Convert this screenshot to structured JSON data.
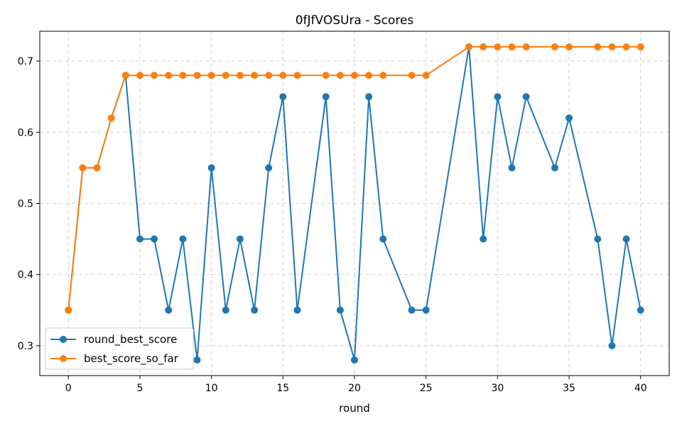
{
  "chart_data": {
    "type": "line",
    "title": "0fJfVOSUra - Scores",
    "xlabel": "round",
    "ylabel": "",
    "xlim": [
      -2,
      42
    ],
    "ylim": [
      0.258,
      0.742
    ],
    "xticks": [
      0,
      5,
      10,
      15,
      20,
      25,
      30,
      35,
      40
    ],
    "yticks": [
      0.3,
      0.4,
      0.5,
      0.6,
      0.7
    ],
    "xtick_labels": [
      "0",
      "5",
      "10",
      "15",
      "20",
      "25",
      "30",
      "35",
      "40"
    ],
    "ytick_labels": [
      "0.3",
      "0.4",
      "0.5",
      "0.6",
      "0.7"
    ],
    "grid": true,
    "legend_position": "lower-left",
    "x": [
      0,
      1,
      2,
      3,
      4,
      5,
      6,
      7,
      8,
      9,
      10,
      11,
      12,
      13,
      14,
      15,
      16,
      18,
      19,
      20,
      21,
      22,
      24,
      25,
      28,
      29,
      30,
      31,
      32,
      34,
      35,
      37,
      38,
      39,
      40
    ],
    "series": [
      {
        "name": "round_best_score",
        "color": "#1f77b4",
        "values": [
          0.35,
          0.55,
          0.55,
          0.62,
          0.68,
          0.45,
          0.45,
          0.35,
          0.45,
          0.28,
          0.55,
          0.35,
          0.45,
          0.35,
          0.55,
          0.65,
          0.35,
          0.65,
          0.35,
          0.28,
          0.65,
          0.45,
          0.35,
          0.35,
          0.72,
          0.45,
          0.65,
          0.55,
          0.65,
          0.55,
          0.62,
          0.45,
          0.3,
          0.45,
          0.35
        ]
      },
      {
        "name": "best_score_so_far",
        "color": "#ff7f0e",
        "values": [
          0.35,
          0.55,
          0.55,
          0.62,
          0.68,
          0.68,
          0.68,
          0.68,
          0.68,
          0.68,
          0.68,
          0.68,
          0.68,
          0.68,
          0.68,
          0.68,
          0.68,
          0.68,
          0.68,
          0.68,
          0.68,
          0.68,
          0.68,
          0.68,
          0.72,
          0.72,
          0.72,
          0.72,
          0.72,
          0.72,
          0.72,
          0.72,
          0.72,
          0.72,
          0.72
        ]
      }
    ]
  }
}
